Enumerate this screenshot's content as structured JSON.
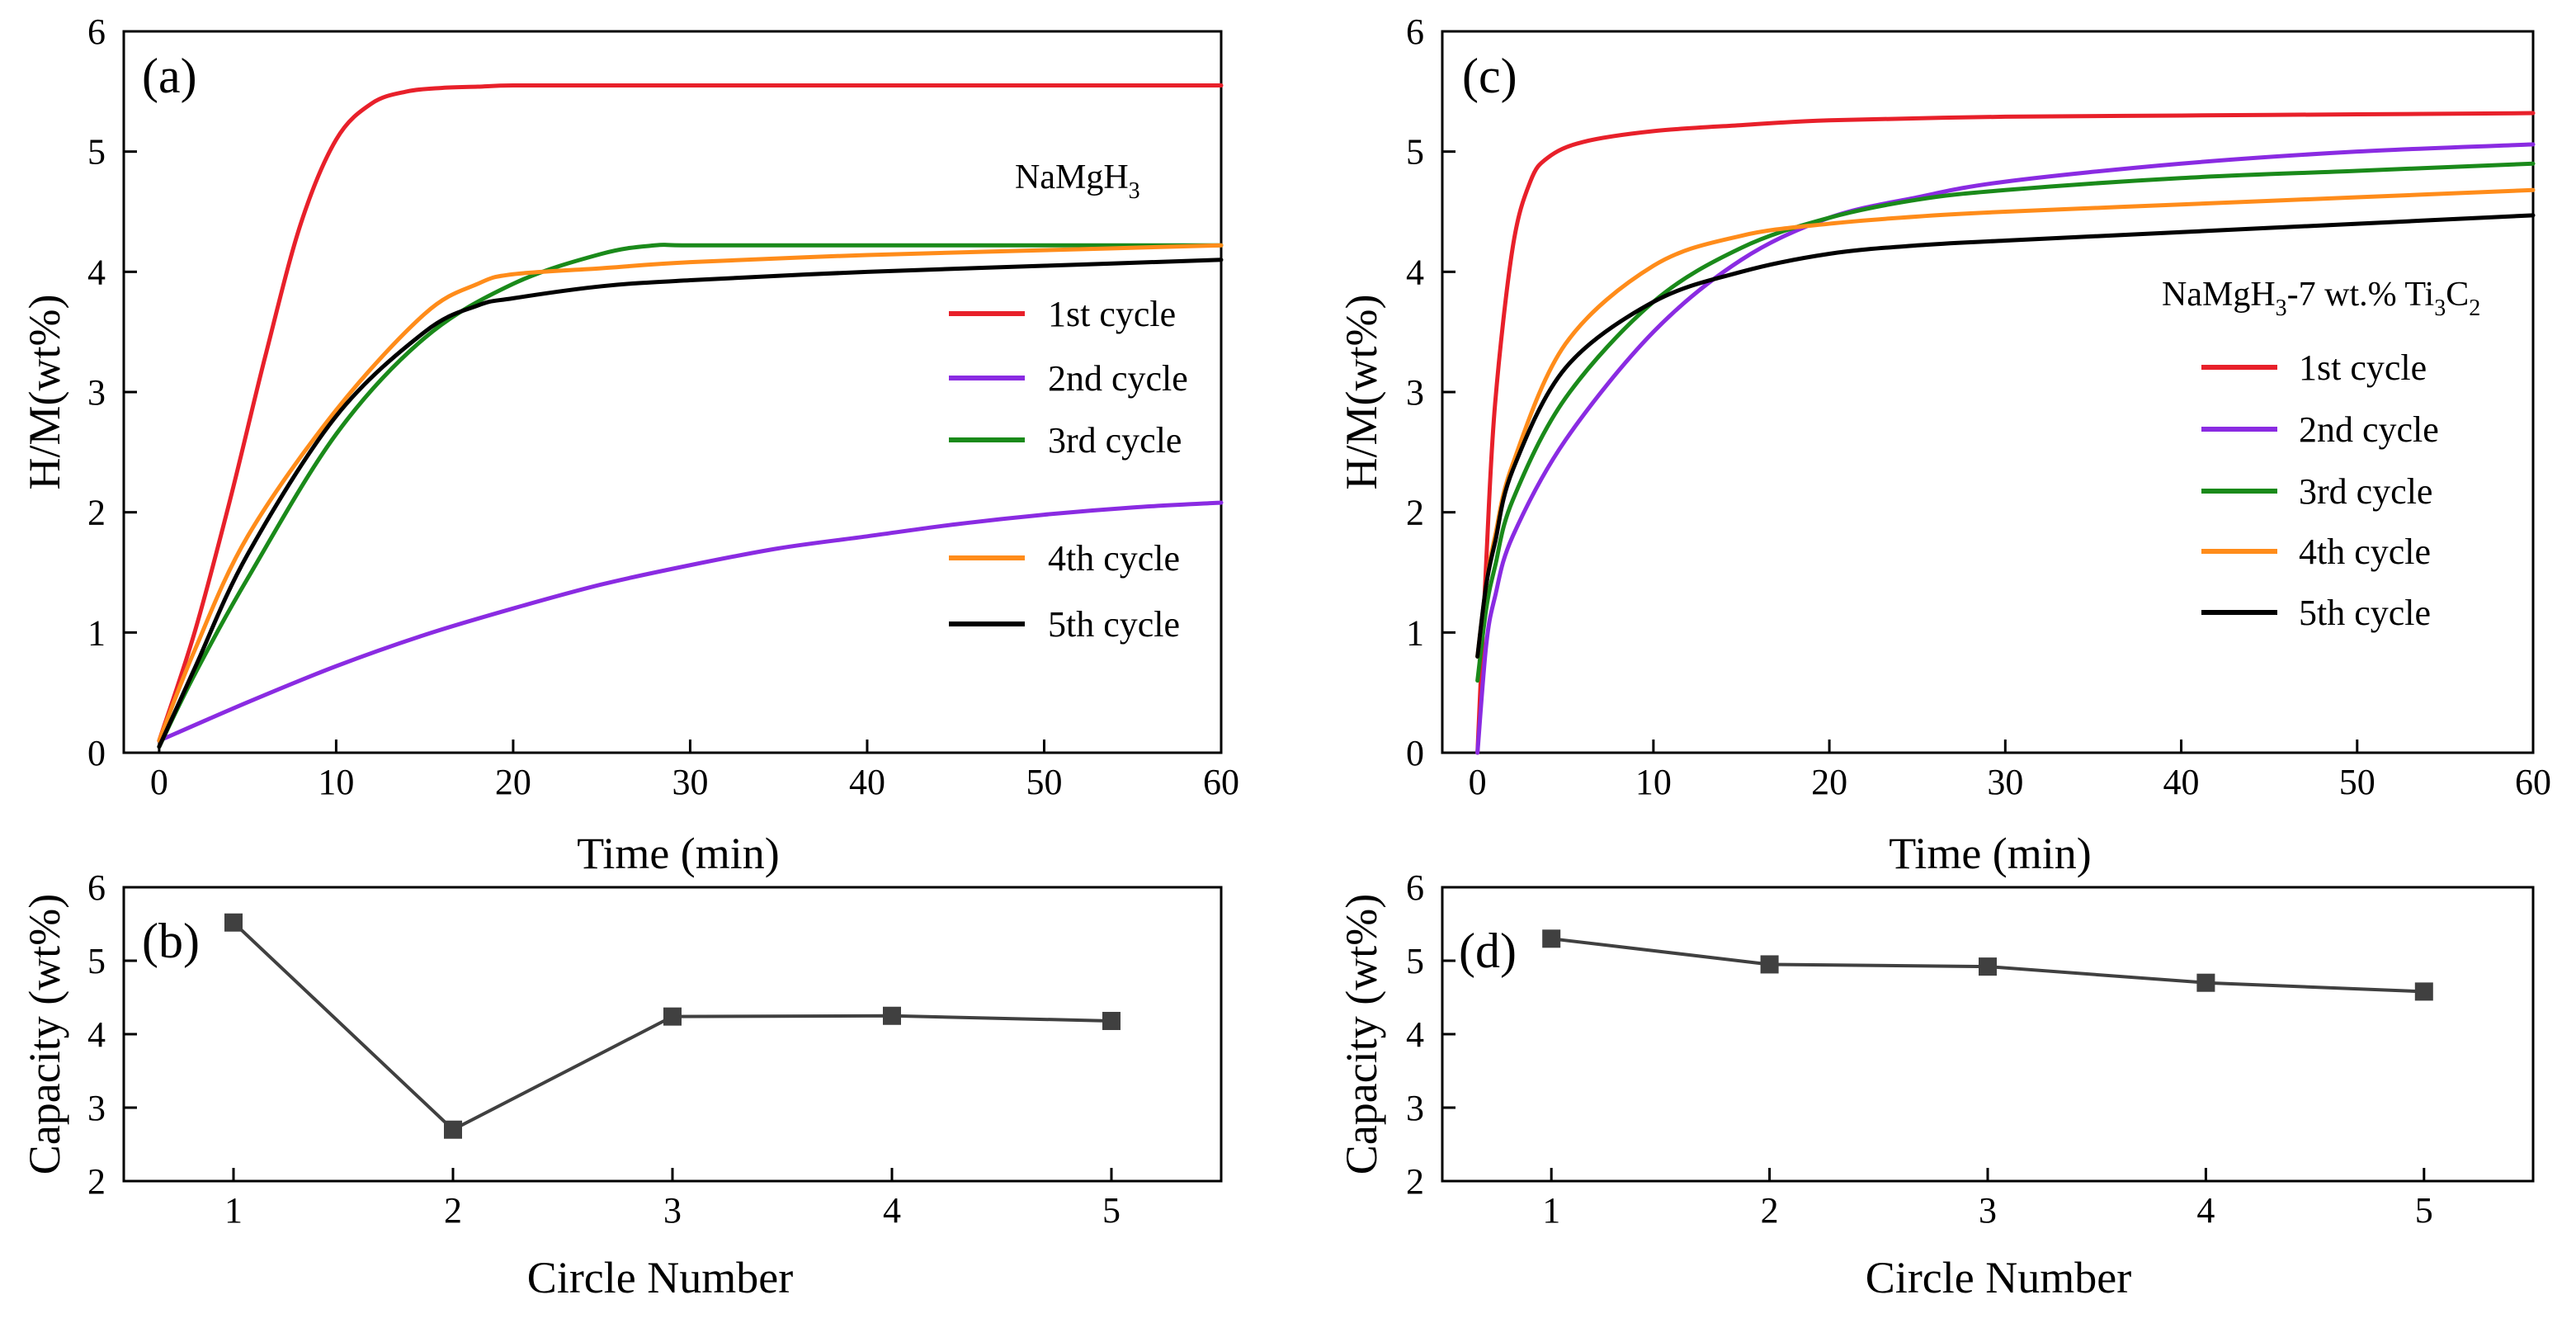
{
  "chart_data": [
    {
      "panel": "(a)",
      "type": "line",
      "annotation": "NaMgH",
      "annotation_sub": "3",
      "xlabel": "Time (min)",
      "ylabel": "H/M(wt%)",
      "xlim": [
        -2,
        60
      ],
      "ylim": [
        0,
        6
      ],
      "xticks": [
        0,
        10,
        20,
        30,
        40,
        50,
        60
      ],
      "yticks": [
        0,
        1,
        2,
        3,
        4,
        5,
        6
      ],
      "legend_position": "right",
      "series": [
        {
          "name": "1st cycle",
          "color": "#e8202a",
          "x": [
            0,
            2,
            4,
            6,
            8,
            10,
            12,
            14,
            16,
            18,
            20,
            25,
            30,
            40,
            50,
            60
          ],
          "y": [
            0.1,
            1.0,
            2.1,
            3.3,
            4.4,
            5.1,
            5.4,
            5.5,
            5.53,
            5.54,
            5.55,
            5.55,
            5.55,
            5.55,
            5.55,
            5.55
          ]
        },
        {
          "name": "2nd cycle",
          "color": "#8a2be2",
          "x": [
            0,
            5,
            10,
            15,
            20,
            25,
            30,
            35,
            40,
            45,
            50,
            55,
            60
          ],
          "y": [
            0.1,
            0.42,
            0.72,
            0.98,
            1.2,
            1.4,
            1.56,
            1.7,
            1.8,
            1.9,
            1.98,
            2.04,
            2.08
          ]
        },
        {
          "name": "3rd cycle",
          "color": "#1a8a1a",
          "x": [
            0,
            2,
            5,
            10,
            15,
            20,
            25,
            28,
            30,
            40,
            50,
            60
          ],
          "y": [
            0.05,
            0.65,
            1.45,
            2.65,
            3.45,
            3.9,
            4.15,
            4.22,
            4.22,
            4.22,
            4.22,
            4.22
          ]
        },
        {
          "name": "4th cycle",
          "color": "#ff8c1a",
          "x": [
            0,
            2,
            5,
            10,
            15,
            18,
            20,
            25,
            30,
            40,
            50,
            60
          ],
          "y": [
            0.1,
            0.85,
            1.8,
            2.85,
            3.65,
            3.9,
            3.98,
            4.03,
            4.08,
            4.14,
            4.18,
            4.22
          ]
        },
        {
          "name": "5th cycle",
          "color": "#000000",
          "x": [
            0,
            2,
            5,
            10,
            15,
            18,
            20,
            25,
            30,
            40,
            50,
            60
          ],
          "y": [
            0.05,
            0.7,
            1.65,
            2.8,
            3.5,
            3.72,
            3.78,
            3.88,
            3.93,
            4.0,
            4.05,
            4.1
          ]
        }
      ]
    },
    {
      "panel": "(b)",
      "type": "line",
      "xlabel": "Circle Number",
      "ylabel": "Capacity (wt%)",
      "xlim": [
        0.5,
        5.5
      ],
      "ylim": [
        2,
        6
      ],
      "xticks": [
        1,
        2,
        3,
        4,
        5
      ],
      "yticks": [
        2,
        3,
        4,
        5,
        6
      ],
      "categories": [
        1,
        2,
        3,
        4,
        5
      ],
      "values": [
        5.52,
        2.7,
        4.24,
        4.25,
        4.18
      ]
    },
    {
      "panel": "(c)",
      "type": "line",
      "annotation": "NaMgH",
      "annotation_sub": "3",
      "annotation_mid": "-7 wt.% Ti",
      "annotation_sub2": "3",
      "annotation_c": "C",
      "annotation_sub3": "2",
      "xlabel": "Time (min)",
      "ylabel": "H/M(wt%)",
      "xlim": [
        -2,
        60
      ],
      "ylim": [
        0,
        6
      ],
      "xticks": [
        0,
        10,
        20,
        30,
        40,
        50,
        60
      ],
      "yticks": [
        0,
        1,
        2,
        3,
        4,
        5,
        6
      ],
      "legend_position": "right",
      "series": [
        {
          "name": "1st cycle",
          "color": "#e8202a",
          "x": [
            0,
            0.5,
            1,
            2,
            3,
            4,
            6,
            10,
            15,
            20,
            30,
            40,
            50,
            60
          ],
          "y": [
            0,
            1.6,
            2.9,
            4.2,
            4.75,
            4.95,
            5.08,
            5.17,
            5.22,
            5.26,
            5.29,
            5.3,
            5.31,
            5.32
          ]
        },
        {
          "name": "2nd cycle",
          "color": "#8a2be2",
          "x": [
            0,
            0.5,
            1,
            2,
            5,
            10,
            15,
            20,
            25,
            30,
            40,
            50,
            60
          ],
          "y": [
            0,
            0.9,
            1.3,
            1.8,
            2.6,
            3.5,
            4.1,
            4.45,
            4.62,
            4.75,
            4.9,
            5.0,
            5.06
          ]
        },
        {
          "name": "3rd cycle",
          "color": "#1a8a1a",
          "x": [
            0,
            0.5,
            1,
            2,
            5,
            10,
            15,
            20,
            25,
            30,
            40,
            50,
            60
          ],
          "y": [
            0.6,
            1.2,
            1.55,
            2.1,
            2.95,
            3.75,
            4.2,
            4.45,
            4.6,
            4.68,
            4.78,
            4.84,
            4.9
          ]
        },
        {
          "name": "4th cycle",
          "color": "#ff8c1a",
          "x": [
            0,
            0.5,
            1,
            2,
            5,
            10,
            15,
            20,
            25,
            30,
            40,
            50,
            60
          ],
          "y": [
            0.8,
            1.4,
            1.8,
            2.4,
            3.4,
            4.05,
            4.3,
            4.4,
            4.46,
            4.5,
            4.56,
            4.62,
            4.68
          ]
        },
        {
          "name": "5th cycle",
          "color": "#000000",
          "x": [
            0,
            0.5,
            1,
            2,
            5,
            10,
            15,
            20,
            25,
            30,
            40,
            50,
            60
          ],
          "y": [
            0.8,
            1.4,
            1.75,
            2.35,
            3.2,
            3.75,
            4.0,
            4.15,
            4.22,
            4.26,
            4.33,
            4.4,
            4.47
          ]
        }
      ]
    },
    {
      "panel": "(d)",
      "type": "line",
      "xlabel": "Circle Number",
      "ylabel": "Capacity (wt%)",
      "xlim": [
        0.5,
        5.5
      ],
      "ylim": [
        2,
        6
      ],
      "xticks": [
        1,
        2,
        3,
        4,
        5
      ],
      "yticks": [
        2,
        3,
        4,
        5,
        6
      ],
      "categories": [
        1,
        2,
        3,
        4,
        5
      ],
      "values": [
        5.3,
        4.95,
        4.92,
        4.7,
        4.58
      ]
    }
  ]
}
